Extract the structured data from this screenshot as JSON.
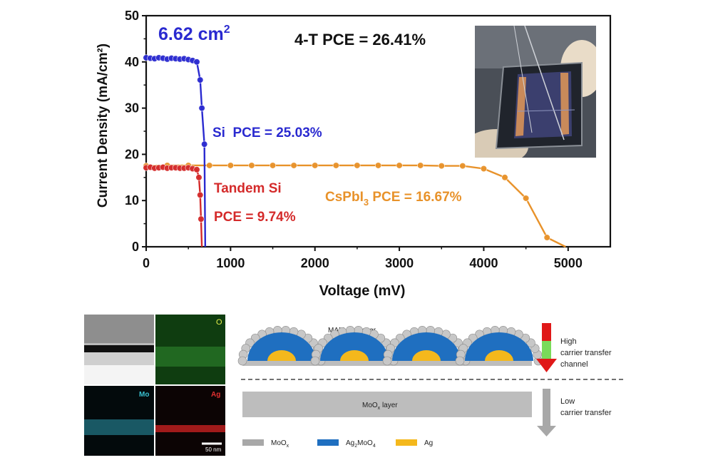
{
  "chart_data": {
    "type": "line",
    "title": "",
    "xlabel": "Voltage (mV)",
    "ylabel": "Current Density (mA/cm²)",
    "xlim": [
      0,
      5500
    ],
    "ylim": [
      0,
      50
    ],
    "xticks": [
      0,
      1000,
      2000,
      3000,
      4000,
      5000
    ],
    "yticks": [
      0,
      10,
      20,
      30,
      40,
      50
    ],
    "series": [
      {
        "name": "Si",
        "color": "#2a2ad0",
        "x": [
          0,
          50,
          100,
          150,
          200,
          250,
          300,
          350,
          400,
          450,
          500,
          550,
          600,
          640,
          660,
          690,
          700
        ],
        "y": [
          40.9,
          40.8,
          40.7,
          40.9,
          40.8,
          40.6,
          40.8,
          40.7,
          40.6,
          40.7,
          40.5,
          40.3,
          40.0,
          36.1,
          30,
          22.2,
          0
        ]
      },
      {
        "name": "Tandem Si",
        "color": "#d42a2a",
        "x": [
          0,
          50,
          100,
          150,
          200,
          250,
          300,
          350,
          400,
          450,
          500,
          550,
          600,
          625,
          640,
          650,
          660
        ],
        "y": [
          17.1,
          17.2,
          17.0,
          17.1,
          17.2,
          17.0,
          17.1,
          17.1,
          17.0,
          17.0,
          17.1,
          16.9,
          16.7,
          15.0,
          11.2,
          6.0,
          0
        ]
      },
      {
        "name": "CsPbI3",
        "color": "#e8922a",
        "x": [
          0,
          250,
          500,
          750,
          1000,
          1250,
          1500,
          1750,
          2000,
          2250,
          2500,
          2750,
          3000,
          3250,
          3500,
          3750,
          4000,
          4250,
          4500,
          4750,
          4970
        ],
        "y": [
          17.5,
          17.6,
          17.6,
          17.6,
          17.6,
          17.6,
          17.6,
          17.6,
          17.6,
          17.6,
          17.6,
          17.6,
          17.6,
          17.6,
          17.5,
          17.5,
          16.9,
          15.0,
          10.5,
          2.0,
          0
        ]
      }
    ],
    "annotations": {
      "area": "6.62 cm",
      "area_sup": "2",
      "four_t": "4-T PCE = 26.41%",
      "si": "Si  PCE = 25.03%",
      "tandem_line1": "Tandem Si",
      "tandem_line2": "PCE = 9.74%",
      "cspbi_prefix": "CsPbI",
      "cspbi_sub": "3",
      "cspbi_suffix": " PCE = 16.67%"
    }
  },
  "eds": {
    "labels": [
      "O",
      "Mo",
      "Ag"
    ],
    "scale_bar": "50 nm"
  },
  "schematic": {
    "mam_label": "MAM buff layer",
    "high_label_lines": [
      "High",
      "carrier transfer",
      "channel"
    ],
    "moox_layer": "MoO",
    "moox_layer_sub": "x",
    "moox_layer_suffix": " layer",
    "low_label_lines": [
      "Low",
      "carrier transfer"
    ],
    "legend": [
      {
        "prefix": "MoO",
        "sub": "x",
        "suffix": "",
        "color": "#a8a8a8"
      },
      {
        "prefix": "Ag",
        "sub": "2",
        "suffix": "MoO",
        "sub2": "4",
        "color": "#1f6fc0"
      },
      {
        "prefix": "Ag",
        "sub": "",
        "suffix": "",
        "color": "#f4b81c"
      }
    ]
  }
}
